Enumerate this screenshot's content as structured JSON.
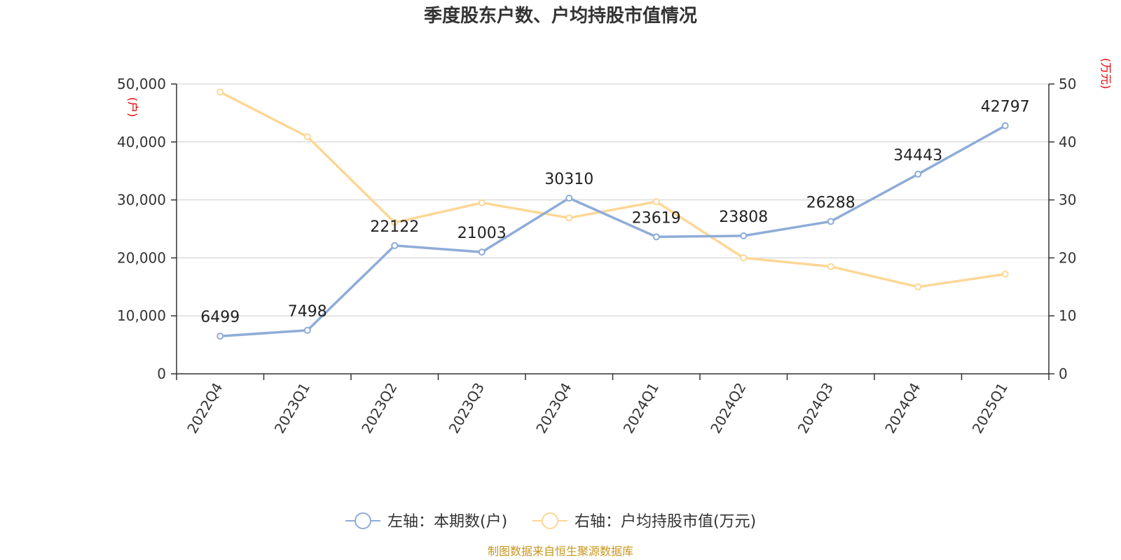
{
  "chart_data": {
    "type": "line",
    "title": "季度股东户数、户均持股市值情况",
    "categories": [
      "2022Q4",
      "2023Q1",
      "2023Q2",
      "2023Q3",
      "2023Q4",
      "2024Q1",
      "2024Q2",
      "2024Q3",
      "2024Q4",
      "2025Q1"
    ],
    "left_axis": {
      "unit": "(户)",
      "ylim": [
        0,
        50000
      ],
      "ticks": [
        "0",
        "10,000",
        "20,000",
        "30,000",
        "40,000",
        "50,000"
      ],
      "tick_values": [
        0,
        10000,
        20000,
        30000,
        40000,
        50000
      ]
    },
    "right_axis": {
      "unit": "(万元)",
      "ylim": [
        0,
        50
      ],
      "ticks": [
        "0",
        "10",
        "20",
        "30",
        "40",
        "50"
      ],
      "tick_values": [
        0,
        10,
        20,
        30,
        40,
        50
      ]
    },
    "series": [
      {
        "name": "左轴：本期数(户)",
        "axis": "left",
        "color": "#8eacd8",
        "values": [
          6499,
          7498,
          22122,
          21003,
          30310,
          23619,
          23808,
          26288,
          34443,
          42797
        ],
        "labels": [
          "6499",
          "7498",
          "22122",
          "21003",
          "30310",
          "23619",
          "23808",
          "26288",
          "34443",
          "42797"
        ]
      },
      {
        "name": "右轴：户均持股市值(万元)",
        "axis": "right",
        "color": "#fdd796",
        "values": [
          48.6,
          40.9,
          26.1,
          29.5,
          26.9,
          29.7,
          20.0,
          18.5,
          15.0,
          17.2
        ]
      }
    ],
    "grid": true,
    "legend": "bottom-center"
  },
  "source": "制图数据来自恒生聚源数据库"
}
